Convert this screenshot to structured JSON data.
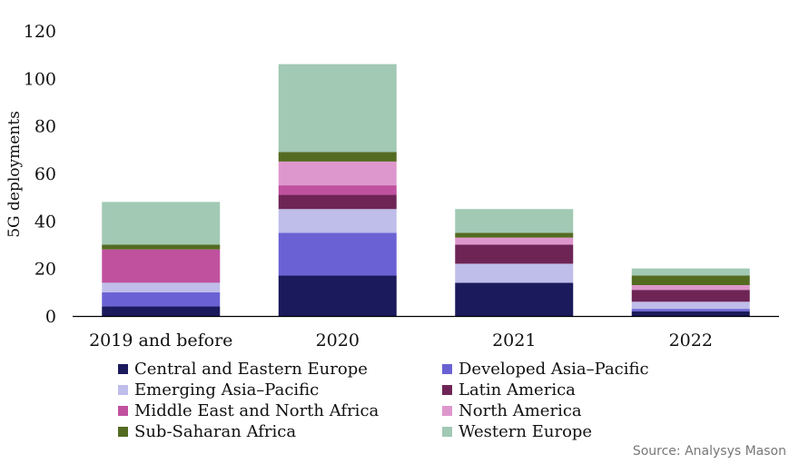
{
  "chart_data": {
    "type": "bar",
    "stacked": true,
    "title": "",
    "xlabel": "",
    "ylabel": "5G deployments",
    "ylim": [
      0,
      120
    ],
    "yticks": [
      0,
      20,
      40,
      60,
      80,
      100,
      120
    ],
    "grid": false,
    "legend_position": "bottom",
    "categories": [
      "2019 and before",
      "2020",
      "2021",
      "2022"
    ],
    "series": [
      {
        "name": "Central and Eastern Europe",
        "color": "#1b1a5c",
        "values": [
          4,
          17,
          14,
          2
        ]
      },
      {
        "name": "Developed Asia–Pacific",
        "color": "#6a62d4",
        "values": [
          6,
          18,
          0,
          1
        ]
      },
      {
        "name": "Emerging Asia–Pacific",
        "color": "#bfbdea",
        "values": [
          4,
          10,
          8,
          3
        ]
      },
      {
        "name": "Latin America",
        "color": "#6e2556",
        "values": [
          0,
          6,
          8,
          5
        ]
      },
      {
        "name": "Middle East and North Africa",
        "color": "#c0519f",
        "values": [
          14,
          4,
          0,
          0
        ]
      },
      {
        "name": "North America",
        "color": "#de97cc",
        "values": [
          0,
          10,
          3,
          2
        ]
      },
      {
        "name": "Sub-Saharan Africa",
        "color": "#546b22",
        "values": [
          2,
          4,
          2,
          4
        ]
      },
      {
        "name": "Western Europe",
        "color": "#a1c9b4",
        "values": [
          18,
          37,
          10,
          3
        ]
      }
    ]
  },
  "source": "Source: Analysys Mason"
}
